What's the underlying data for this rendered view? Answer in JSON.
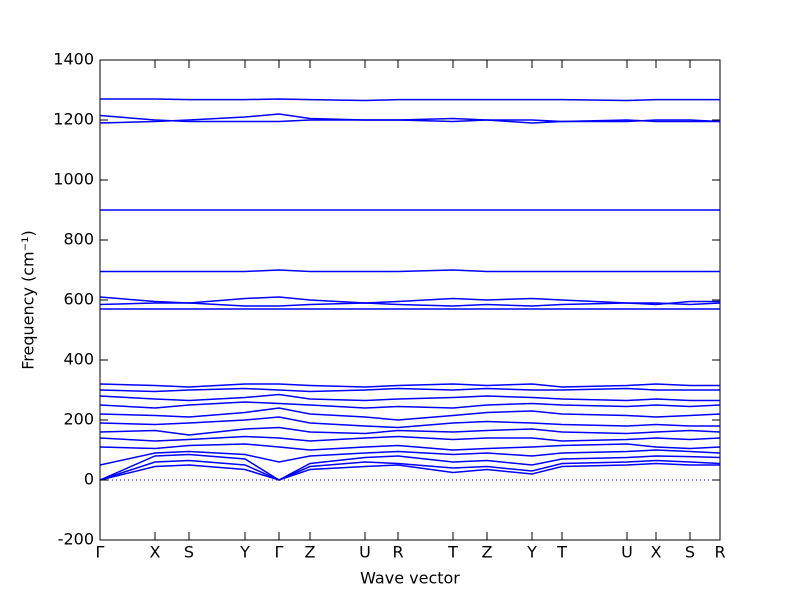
{
  "chart_data": {
    "type": "line",
    "x_label": "Wave vector",
    "y_label": "Frequency (cm⁻¹)",
    "x": [
      0,
      55,
      89,
      145,
      179,
      210,
      265,
      298,
      353,
      387,
      432,
      462,
      527,
      556,
      590,
      620
    ],
    "xlim": [
      0,
      620
    ],
    "xticks": [
      {
        "value": 0,
        "label": "Γ"
      },
      {
        "value": 55,
        "label": "X"
      },
      {
        "value": 89,
        "label": "S"
      },
      {
        "value": 145,
        "label": "Y"
      },
      {
        "value": 179,
        "label": "Γ"
      },
      {
        "value": 210,
        "label": "Z"
      },
      {
        "value": 265,
        "label": "U"
      },
      {
        "value": 298,
        "label": "R"
      },
      {
        "value": 353,
        "label": "T"
      },
      {
        "value": 387,
        "label": "Z"
      },
      {
        "value": 432,
        "label": "Y"
      },
      {
        "value": 462,
        "label": "T"
      },
      {
        "value": 527,
        "label": "U"
      },
      {
        "value": 556,
        "label": "X"
      },
      {
        "value": 590,
        "label": "S"
      },
      {
        "value": 620,
        "label": "R"
      }
    ],
    "ylim": [
      -200,
      1400
    ],
    "yticks": [
      -200,
      0,
      200,
      400,
      600,
      800,
      1000,
      1200,
      1400
    ],
    "hline": 0,
    "color": "#0000ff",
    "series": [
      {
        "values": [
          0,
          45,
          50,
          35,
          0,
          35,
          45,
          50,
          25,
          35,
          20,
          45,
          50,
          55,
          50,
          50
        ]
      },
      {
        "values": [
          0,
          60,
          65,
          50,
          0,
          45,
          60,
          55,
          40,
          45,
          30,
          55,
          60,
          65,
          60,
          55
        ]
      },
      {
        "values": [
          0,
          80,
          85,
          70,
          0,
          55,
          75,
          80,
          60,
          65,
          50,
          70,
          75,
          80,
          78,
          75
        ]
      },
      {
        "values": [
          50,
          90,
          95,
          85,
          60,
          80,
          90,
          95,
          85,
          90,
          80,
          90,
          95,
          100,
          95,
          90
        ]
      },
      {
        "values": [
          110,
          105,
          115,
          120,
          110,
          100,
          110,
          115,
          100,
          105,
          110,
          115,
          120,
          110,
          105,
          110
        ]
      },
      {
        "values": [
          140,
          130,
          135,
          145,
          140,
          130,
          140,
          145,
          135,
          140,
          140,
          130,
          135,
          140,
          135,
          140
        ]
      },
      {
        "values": [
          160,
          165,
          150,
          170,
          175,
          160,
          155,
          165,
          160,
          165,
          170,
          160,
          155,
          160,
          165,
          160
        ]
      },
      {
        "values": [
          190,
          185,
          190,
          200,
          210,
          190,
          180,
          175,
          190,
          195,
          190,
          185,
          180,
          185,
          180,
          180
        ]
      },
      {
        "values": [
          220,
          215,
          210,
          225,
          240,
          220,
          210,
          200,
          215,
          225,
          230,
          220,
          215,
          210,
          215,
          220
        ]
      },
      {
        "values": [
          250,
          240,
          250,
          260,
          255,
          250,
          240,
          245,
          240,
          250,
          255,
          250,
          245,
          250,
          245,
          250
        ]
      },
      {
        "values": [
          280,
          270,
          265,
          275,
          285,
          270,
          265,
          270,
          275,
          280,
          275,
          270,
          265,
          270,
          265,
          265
        ]
      },
      {
        "values": [
          300,
          295,
          300,
          305,
          300,
          295,
          300,
          305,
          300,
          305,
          300,
          300,
          305,
          300,
          300,
          300
        ]
      },
      {
        "values": [
          320,
          315,
          310,
          320,
          320,
          315,
          310,
          315,
          320,
          315,
          320,
          310,
          315,
          320,
          315,
          315
        ]
      },
      {
        "values": [
          570,
          570,
          570,
          570,
          570,
          570,
          570,
          570,
          570,
          570,
          570,
          570,
          570,
          570,
          570,
          570
        ]
      },
      {
        "values": [
          585,
          590,
          590,
          580,
          580,
          585,
          590,
          585,
          580,
          585,
          580,
          585,
          590,
          590,
          585,
          590
        ]
      },
      {
        "values": [
          610,
          595,
          590,
          605,
          610,
          600,
          590,
          595,
          605,
          600,
          605,
          600,
          590,
          585,
          595,
          595
        ]
      },
      {
        "values": [
          695,
          695,
          695,
          695,
          700,
          695,
          695,
          695,
          700,
          695,
          695,
          695,
          695,
          695,
          695,
          695
        ]
      },
      {
        "values": [
          900,
          900,
          900,
          900,
          900,
          900,
          900,
          900,
          900,
          900,
          900,
          900,
          900,
          900,
          900,
          900
        ]
      },
      {
        "values": [
          1190,
          1195,
          1200,
          1210,
          1220,
          1205,
          1200,
          1200,
          1205,
          1200,
          1190,
          1195,
          1200,
          1195,
          1195,
          1195
        ]
      },
      {
        "values": [
          1215,
          1200,
          1195,
          1195,
          1195,
          1200,
          1200,
          1200,
          1195,
          1200,
          1200,
          1195,
          1195,
          1200,
          1200,
          1195
        ]
      },
      {
        "values": [
          1270,
          1270,
          1268,
          1268,
          1270,
          1268,
          1265,
          1268,
          1268,
          1268,
          1268,
          1268,
          1265,
          1268,
          1268,
          1268
        ]
      }
    ]
  }
}
